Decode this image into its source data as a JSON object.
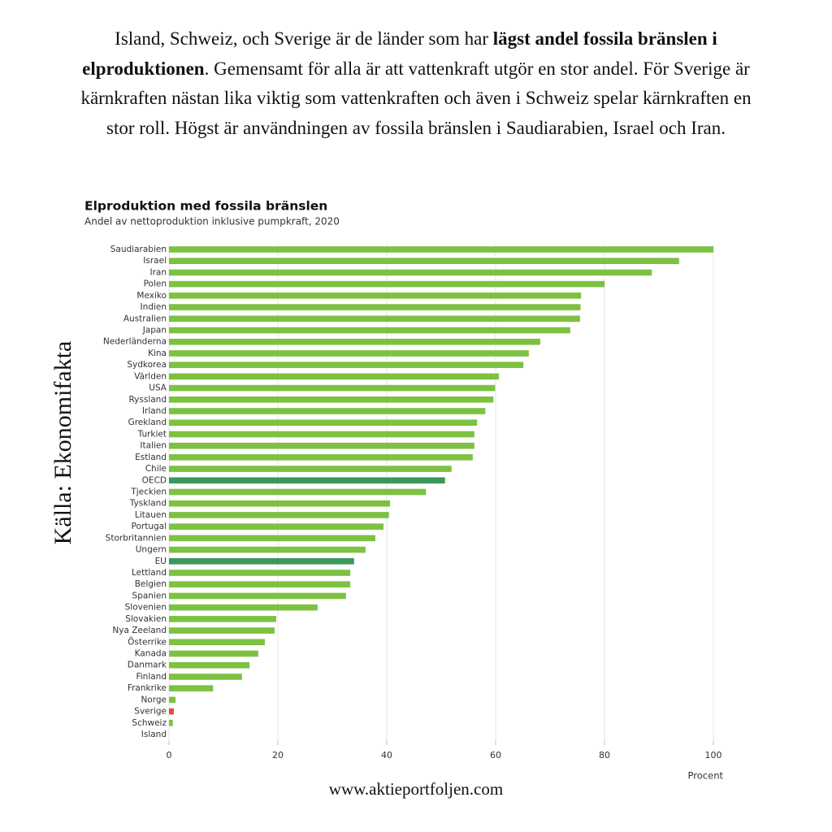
{
  "intro": [
    {
      "text": "Island, Schweiz, och Sverige är de länder som har ",
      "bold": false
    },
    {
      "text": "lägst andel fossila bränslen i elproduktionen",
      "bold": true
    },
    {
      "text": ". Gemensamt för alla är att vattenkraft utgör en stor andel. För Sverige är kärnkraften nästan lika viktig som vattenkraften och även i Schweiz spelar kärnkraften en stor roll. Högst är användningen av fossila bränslen i Saudiarabien, Israel och Iran.",
      "bold": false
    }
  ],
  "source": "Källa: Ekonomifakta",
  "footer": "www.aktieportfoljen.com",
  "chart_data": {
    "type": "hbar",
    "title": "Elproduktion med fossila bränslen",
    "subtitle": "Andel av nettoproduktion inklusive pumpkraft, 2020",
    "xlabel": "Procent",
    "categories": [
      "Saudiarabien",
      "Israel",
      "Iran",
      "Polen",
      "Mexiko",
      "Indien",
      "Australien",
      "Japan",
      "Nederländerna",
      "Kina",
      "Sydkorea",
      "Världen",
      "USA",
      "Ryssland",
      "Irland",
      "Grekland",
      "Turkiet",
      "Italien",
      "Estland",
      "Chile",
      "OECD",
      "Tjeckien",
      "Tyskland",
      "Litauen",
      "Portugal",
      "Storbritannien",
      "Ungern",
      "EU",
      "Lettland",
      "Belgien",
      "Spanien",
      "Slovenien",
      "Slovakien",
      "Nya Zeeland",
      "Österrike",
      "Kanada",
      "Danmark",
      "Finland",
      "Frankrike",
      "Norge",
      "Sverige",
      "Schweiz",
      "Island"
    ],
    "values": [
      100,
      93.7,
      88.7,
      80,
      75.7,
      75.6,
      75.5,
      73.7,
      68.2,
      66.1,
      65.1,
      60.6,
      59.9,
      59.6,
      58.1,
      56.6,
      56.1,
      56.1,
      55.8,
      51.9,
      50.7,
      47.2,
      40.6,
      40.4,
      39.4,
      37.9,
      36.1,
      34,
      33.3,
      33.3,
      32.5,
      27.3,
      19.7,
      19.4,
      17.6,
      16.4,
      14.8,
      13.4,
      8.1,
      1.2,
      0.9,
      0.7,
      0
    ],
    "colors": [
      "#7dc142",
      "#7dc142",
      "#7dc142",
      "#7dc142",
      "#7dc142",
      "#7dc142",
      "#7dc142",
      "#7dc142",
      "#7dc142",
      "#7dc142",
      "#7dc142",
      "#7dc142",
      "#7dc142",
      "#7dc142",
      "#7dc142",
      "#7dc142",
      "#7dc142",
      "#7dc142",
      "#7dc142",
      "#7dc142",
      "#3a985a",
      "#7dc142",
      "#7dc142",
      "#7dc142",
      "#7dc142",
      "#7dc142",
      "#7dc142",
      "#3a985a",
      "#7dc142",
      "#7dc142",
      "#7dc142",
      "#7dc142",
      "#7dc142",
      "#7dc142",
      "#7dc142",
      "#7dc142",
      "#7dc142",
      "#7dc142",
      "#7dc142",
      "#7dc142",
      "#e0503c",
      "#7dc142",
      "#7dc142"
    ],
    "xlim": [
      0,
      100
    ],
    "xticks": [
      0,
      20,
      40,
      60,
      80,
      100
    ],
    "grid": true
  }
}
